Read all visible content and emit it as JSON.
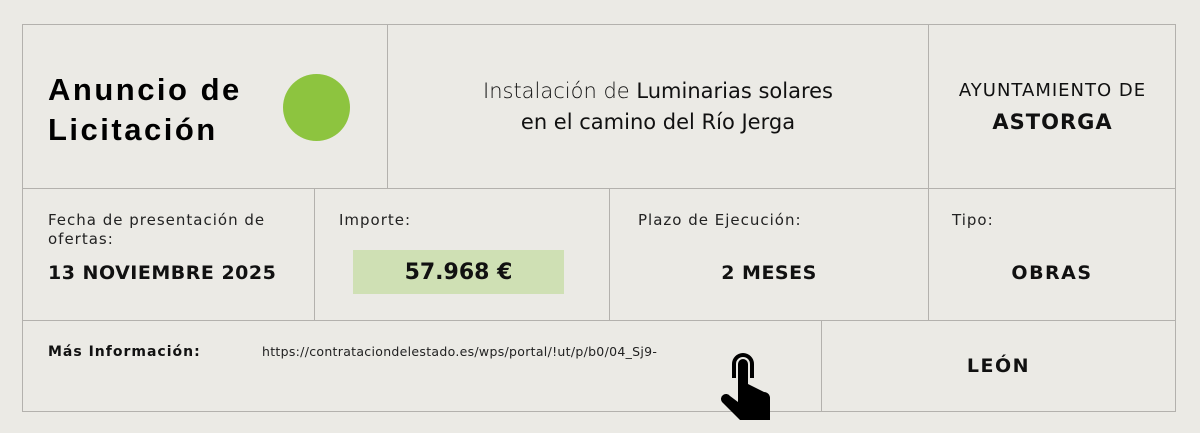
{
  "header": {
    "title_line1": "Anuncio de",
    "title_line2": "Licitación",
    "accent_color": "#8dc43f",
    "description_line1_pre": "Instalación de ",
    "description_line1_bold": "Luminarias solares",
    "description_line2": "en el camino del Río Jerga",
    "municipality_label": "AYUNTAMIENTO DE",
    "municipality_name": "ASTORGA"
  },
  "details": {
    "fecha_label": "Fecha de presentación de ofertas:",
    "fecha_value": "13 NOVIEMBRE 2025",
    "importe_label": "Importe:",
    "importe_value": "57.968 €",
    "importe_bg": "#cfe0b4",
    "plazo_label": "Plazo de Ejecución:",
    "plazo_value": "2 MESES",
    "tipo_label": "Tipo:",
    "tipo_value": "OBRAS"
  },
  "footer": {
    "info_label": "Más Información:",
    "url": "https://contrataciondelestado.es/wps/portal/!ut/p/b0/04_Sj9-",
    "icon": "pointing-hand-icon",
    "province": "LEÓN"
  }
}
